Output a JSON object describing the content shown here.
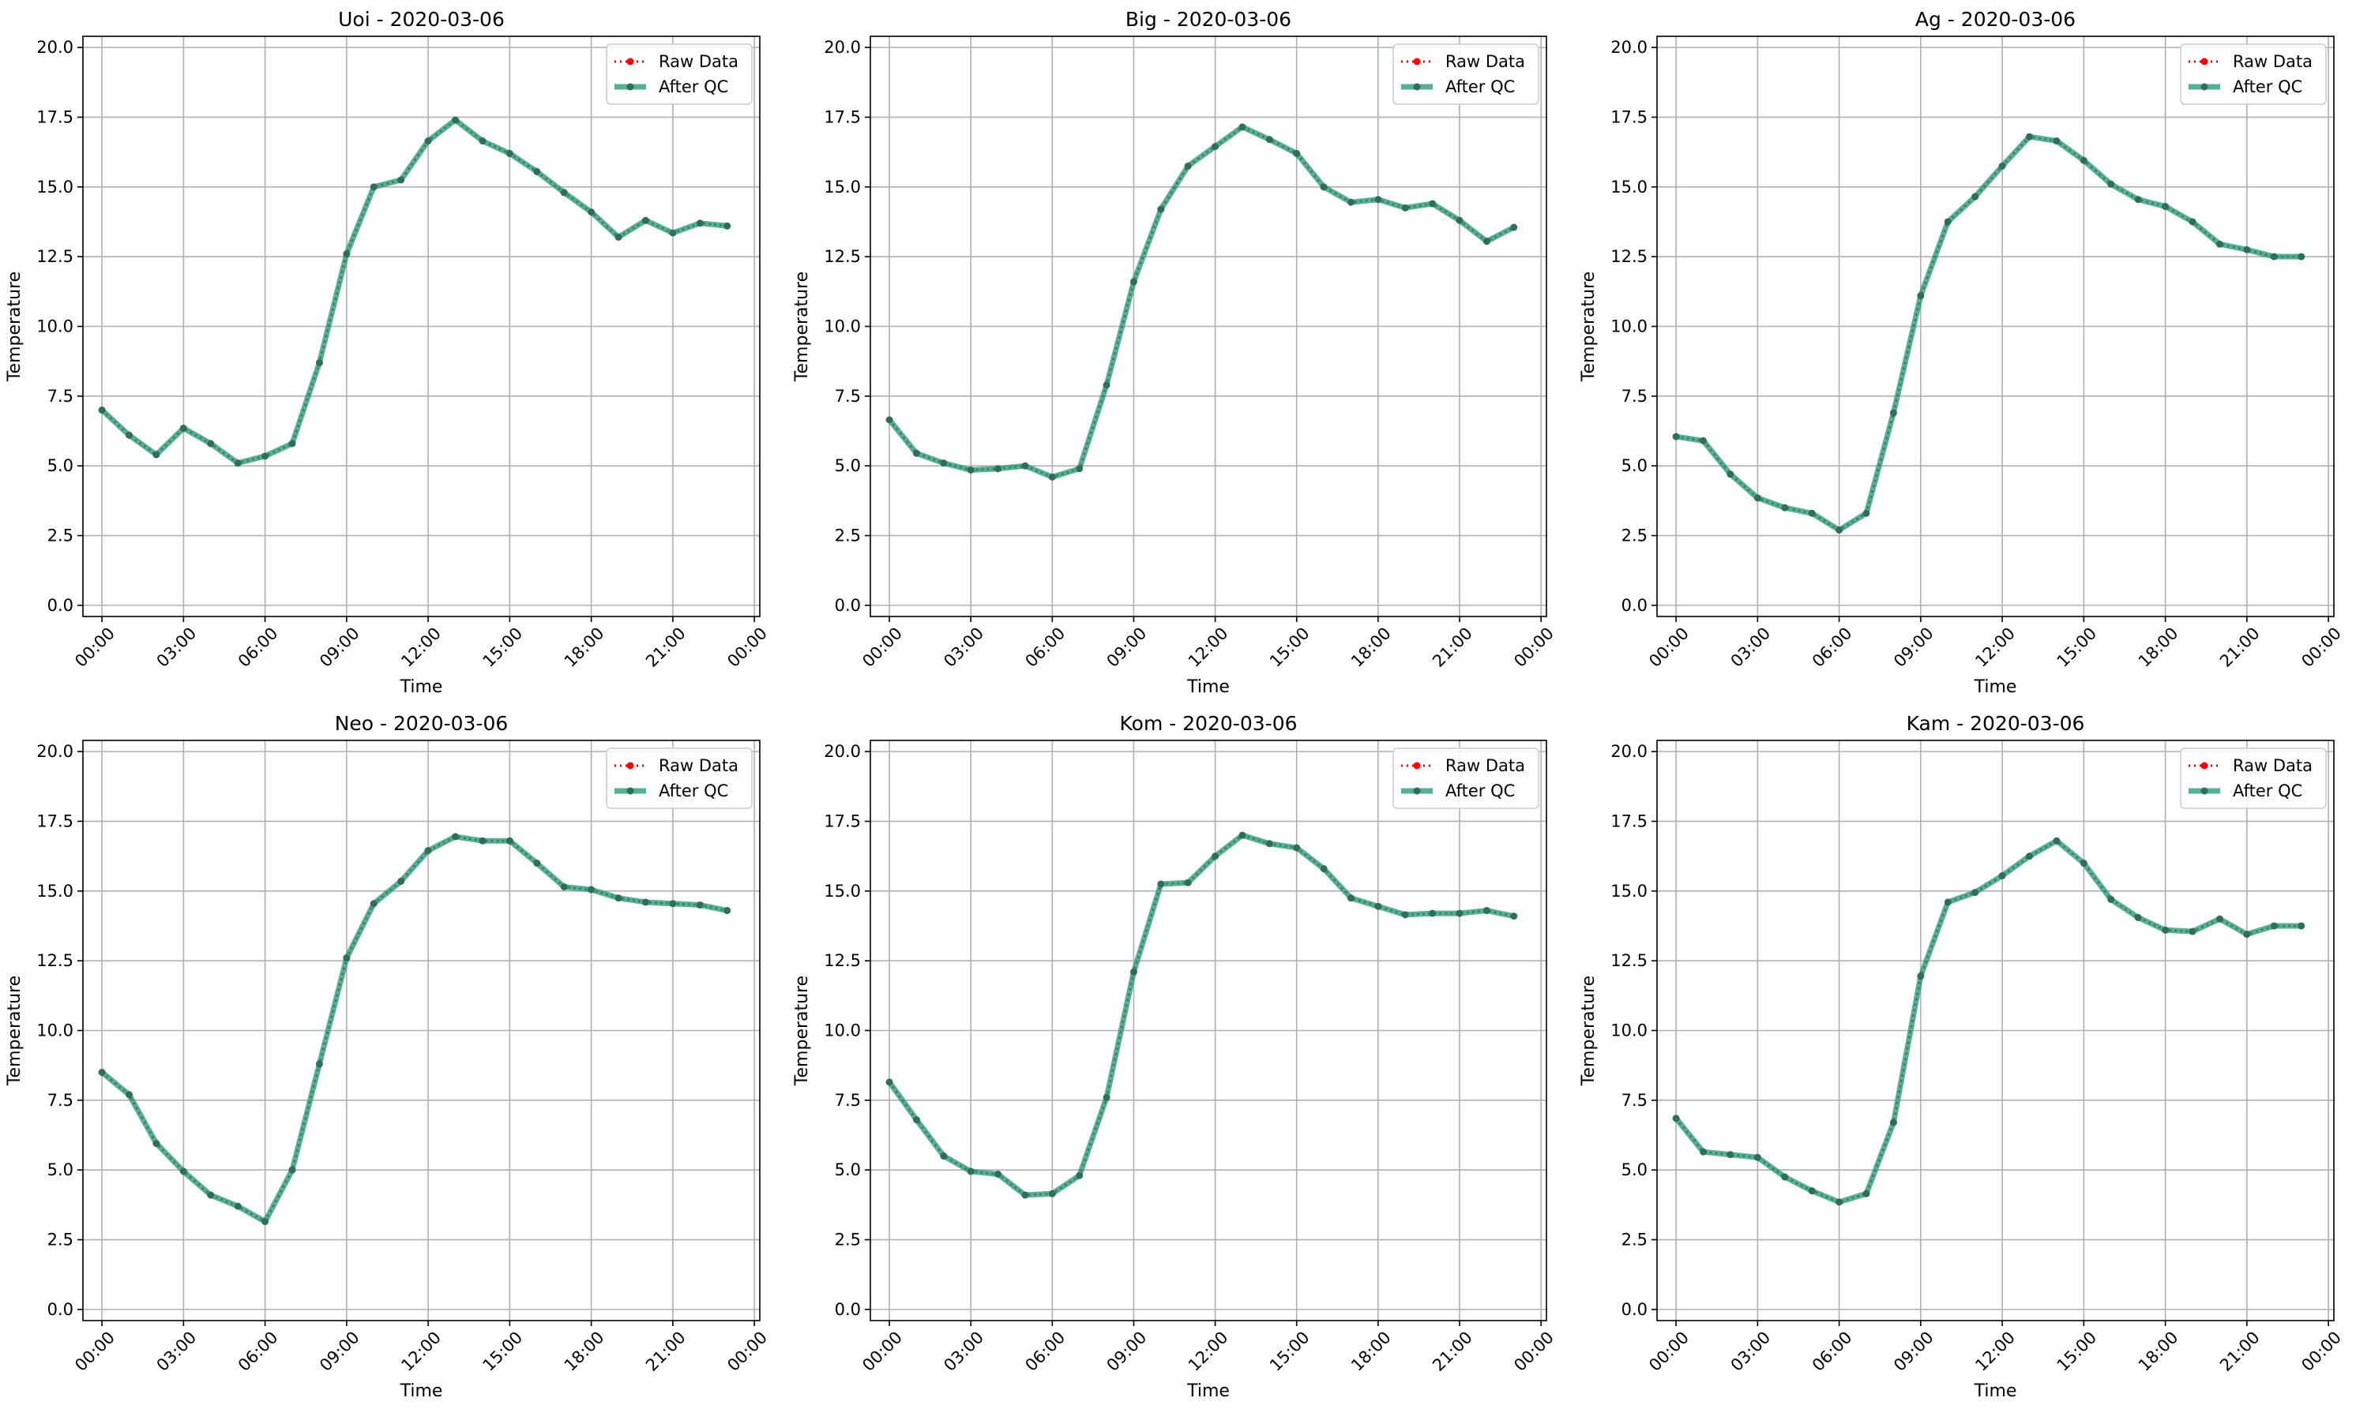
{
  "figure": {
    "background": "#ffffff"
  },
  "legend": {
    "position": "top-right",
    "raw_label": "Raw Data",
    "qc_label": "After QC"
  },
  "colors": {
    "raw": "#ff0000",
    "qc": "#2a9d7a",
    "grid": "#b0b0b0",
    "axis": "#000000"
  },
  "chart_data": [
    {
      "type": "line",
      "title": "Uoi - 2020-03-06",
      "xlabel": "Time",
      "ylabel": "Temperature",
      "x_ticks": [
        "00:00",
        "03:00",
        "06:00",
        "09:00",
        "12:00",
        "15:00",
        "18:00",
        "21:00",
        "00:00"
      ],
      "y_ticks": [
        "0.0",
        "2.5",
        "5.0",
        "7.5",
        "10.0",
        "12.5",
        "15.0",
        "17.5",
        "20.0"
      ],
      "ylim": [
        -0.4,
        20.4
      ],
      "xlim_hours": [
        -0.7,
        24.2
      ],
      "grid": true,
      "x_hours": [
        0,
        1,
        2,
        3,
        4,
        5,
        6,
        7,
        8,
        9,
        10,
        11,
        12,
        13,
        14,
        15,
        16,
        17,
        18,
        19,
        20,
        21,
        22,
        23
      ],
      "series": [
        {
          "name": "Raw Data",
          "values": [
            7.0,
            6.1,
            5.4,
            6.35,
            5.8,
            5.1,
            5.35,
            5.8,
            8.7,
            12.6,
            15.0,
            15.25,
            16.65,
            17.4,
            16.65,
            16.2,
            15.55,
            14.8,
            14.1,
            13.2,
            13.8,
            13.35,
            13.7,
            13.6
          ]
        },
        {
          "name": "After QC",
          "values": [
            7.0,
            6.1,
            5.4,
            6.35,
            5.8,
            5.1,
            5.35,
            5.8,
            8.7,
            12.6,
            15.0,
            15.25,
            16.65,
            17.4,
            16.65,
            16.2,
            15.55,
            14.8,
            14.1,
            13.2,
            13.8,
            13.35,
            13.7,
            13.6
          ]
        }
      ]
    },
    {
      "type": "line",
      "title": "Big - 2020-03-06",
      "xlabel": "Time",
      "ylabel": "Temperature",
      "x_ticks": [
        "00:00",
        "03:00",
        "06:00",
        "09:00",
        "12:00",
        "15:00",
        "18:00",
        "21:00",
        "00:00"
      ],
      "y_ticks": [
        "0.0",
        "2.5",
        "5.0",
        "7.5",
        "10.0",
        "12.5",
        "15.0",
        "17.5",
        "20.0"
      ],
      "ylim": [
        -0.4,
        20.4
      ],
      "xlim_hours": [
        -0.7,
        24.2
      ],
      "grid": true,
      "x_hours": [
        0,
        1,
        2,
        3,
        4,
        5,
        6,
        7,
        8,
        9,
        10,
        11,
        12,
        13,
        14,
        15,
        16,
        17,
        18,
        19,
        20,
        21,
        22,
        23
      ],
      "series": [
        {
          "name": "Raw Data",
          "values": [
            6.65,
            5.45,
            5.1,
            4.85,
            4.9,
            5.0,
            4.6,
            4.9,
            7.9,
            11.6,
            14.2,
            15.75,
            16.45,
            17.15,
            16.7,
            16.2,
            15.0,
            14.45,
            14.55,
            14.25,
            14.4,
            13.8,
            13.05,
            13.55
          ]
        },
        {
          "name": "After QC",
          "values": [
            6.65,
            5.45,
            5.1,
            4.85,
            4.9,
            5.0,
            4.6,
            4.9,
            7.9,
            11.6,
            14.2,
            15.75,
            16.45,
            17.15,
            16.7,
            16.2,
            15.0,
            14.45,
            14.55,
            14.25,
            14.4,
            13.8,
            13.05,
            13.55
          ]
        }
      ]
    },
    {
      "type": "line",
      "title": "Ag - 2020-03-06",
      "xlabel": "Time",
      "ylabel": "Temperature",
      "x_ticks": [
        "00:00",
        "03:00",
        "06:00",
        "09:00",
        "12:00",
        "15:00",
        "18:00",
        "21:00",
        "00:00"
      ],
      "y_ticks": [
        "0.0",
        "2.5",
        "5.0",
        "7.5",
        "10.0",
        "12.5",
        "15.0",
        "17.5",
        "20.0"
      ],
      "ylim": [
        -0.4,
        20.4
      ],
      "xlim_hours": [
        -0.7,
        24.2
      ],
      "grid": true,
      "x_hours": [
        0,
        1,
        2,
        3,
        4,
        5,
        6,
        7,
        8,
        9,
        10,
        11,
        12,
        13,
        14,
        15,
        16,
        17,
        18,
        19,
        20,
        21,
        22,
        23
      ],
      "series": [
        {
          "name": "Raw Data",
          "values": [
            6.05,
            5.9,
            4.7,
            3.85,
            3.5,
            3.3,
            2.7,
            3.3,
            6.9,
            11.1,
            13.75,
            14.65,
            15.75,
            16.8,
            16.65,
            15.95,
            15.1,
            14.55,
            14.3,
            13.75,
            12.95,
            12.75,
            12.5,
            12.5
          ]
        },
        {
          "name": "After QC",
          "values": [
            6.05,
            5.9,
            4.7,
            3.85,
            3.5,
            3.3,
            2.7,
            3.3,
            6.9,
            11.1,
            13.75,
            14.65,
            15.75,
            16.8,
            16.65,
            15.95,
            15.1,
            14.55,
            14.3,
            13.75,
            12.95,
            12.75,
            12.5,
            12.5
          ]
        }
      ]
    },
    {
      "type": "line",
      "title": "Neo - 2020-03-06",
      "xlabel": "Time",
      "ylabel": "Temperature",
      "x_ticks": [
        "00:00",
        "03:00",
        "06:00",
        "09:00",
        "12:00",
        "15:00",
        "18:00",
        "21:00",
        "00:00"
      ],
      "y_ticks": [
        "0.0",
        "2.5",
        "5.0",
        "7.5",
        "10.0",
        "12.5",
        "15.0",
        "17.5",
        "20.0"
      ],
      "ylim": [
        -0.4,
        20.4
      ],
      "xlim_hours": [
        -0.7,
        24.2
      ],
      "grid": true,
      "x_hours": [
        0,
        1,
        2,
        3,
        4,
        5,
        6,
        7,
        8,
        9,
        10,
        11,
        12,
        13,
        14,
        15,
        16,
        17,
        18,
        19,
        20,
        21,
        22,
        23
      ],
      "series": [
        {
          "name": "Raw Data",
          "values": [
            8.5,
            7.7,
            5.95,
            4.95,
            4.1,
            3.7,
            3.15,
            5.0,
            8.8,
            12.6,
            14.55,
            15.35,
            16.45,
            16.95,
            16.8,
            16.8,
            16.0,
            15.15,
            15.05,
            14.75,
            14.6,
            14.55,
            14.5,
            14.3
          ]
        },
        {
          "name": "After QC",
          "values": [
            8.5,
            7.7,
            5.95,
            4.95,
            4.1,
            3.7,
            3.15,
            5.0,
            8.8,
            12.6,
            14.55,
            15.35,
            16.45,
            16.95,
            16.8,
            16.8,
            16.0,
            15.15,
            15.05,
            14.75,
            14.6,
            14.55,
            14.5,
            14.3
          ]
        }
      ]
    },
    {
      "type": "line",
      "title": "Kom - 2020-03-06",
      "xlabel": "Time",
      "ylabel": "Temperature",
      "x_ticks": [
        "00:00",
        "03:00",
        "06:00",
        "09:00",
        "12:00",
        "15:00",
        "18:00",
        "21:00",
        "00:00"
      ],
      "y_ticks": [
        "0.0",
        "2.5",
        "5.0",
        "7.5",
        "10.0",
        "12.5",
        "15.0",
        "17.5",
        "20.0"
      ],
      "ylim": [
        -0.4,
        20.4
      ],
      "xlim_hours": [
        -0.7,
        24.2
      ],
      "grid": true,
      "x_hours": [
        0,
        1,
        2,
        3,
        4,
        5,
        6,
        7,
        8,
        9,
        10,
        11,
        12,
        13,
        14,
        15,
        16,
        17,
        18,
        19,
        20,
        21,
        22,
        23
      ],
      "series": [
        {
          "name": "Raw Data",
          "values": [
            8.15,
            6.8,
            5.5,
            4.95,
            4.85,
            4.1,
            4.15,
            4.8,
            7.6,
            12.1,
            15.25,
            15.3,
            16.25,
            17.0,
            16.7,
            16.55,
            15.8,
            14.75,
            14.45,
            14.15,
            14.2,
            14.2,
            14.3,
            14.1
          ]
        },
        {
          "name": "After QC",
          "values": [
            8.15,
            6.8,
            5.5,
            4.95,
            4.85,
            4.1,
            4.15,
            4.8,
            7.6,
            12.1,
            15.25,
            15.3,
            16.25,
            17.0,
            16.7,
            16.55,
            15.8,
            14.75,
            14.45,
            14.15,
            14.2,
            14.2,
            14.3,
            14.1
          ]
        }
      ]
    },
    {
      "type": "line",
      "title": "Kam - 2020-03-06",
      "xlabel": "Time",
      "ylabel": "Temperature",
      "x_ticks": [
        "00:00",
        "03:00",
        "06:00",
        "09:00",
        "12:00",
        "15:00",
        "18:00",
        "21:00",
        "00:00"
      ],
      "y_ticks": [
        "0.0",
        "2.5",
        "5.0",
        "7.5",
        "10.0",
        "12.5",
        "15.0",
        "17.5",
        "20.0"
      ],
      "ylim": [
        -0.4,
        20.4
      ],
      "xlim_hours": [
        -0.7,
        24.2
      ],
      "grid": true,
      "x_hours": [
        0,
        1,
        2,
        3,
        4,
        5,
        6,
        7,
        8,
        9,
        10,
        11,
        12,
        13,
        14,
        15,
        16,
        17,
        18,
        19,
        20,
        21,
        22,
        23
      ],
      "series": [
        {
          "name": "Raw Data",
          "values": [
            6.85,
            5.65,
            5.55,
            5.45,
            4.75,
            4.25,
            3.85,
            4.15,
            6.7,
            11.95,
            14.6,
            14.95,
            15.55,
            16.25,
            16.8,
            16.0,
            14.7,
            14.05,
            13.6,
            13.55,
            14.0,
            13.45,
            13.75,
            13.75
          ]
        },
        {
          "name": "After QC",
          "values": [
            6.85,
            5.65,
            5.55,
            5.45,
            4.75,
            4.25,
            3.85,
            4.15,
            6.7,
            11.95,
            14.6,
            14.95,
            15.55,
            16.25,
            16.8,
            16.0,
            14.7,
            14.05,
            13.6,
            13.55,
            14.0,
            13.45,
            13.75,
            13.75
          ]
        }
      ]
    }
  ]
}
